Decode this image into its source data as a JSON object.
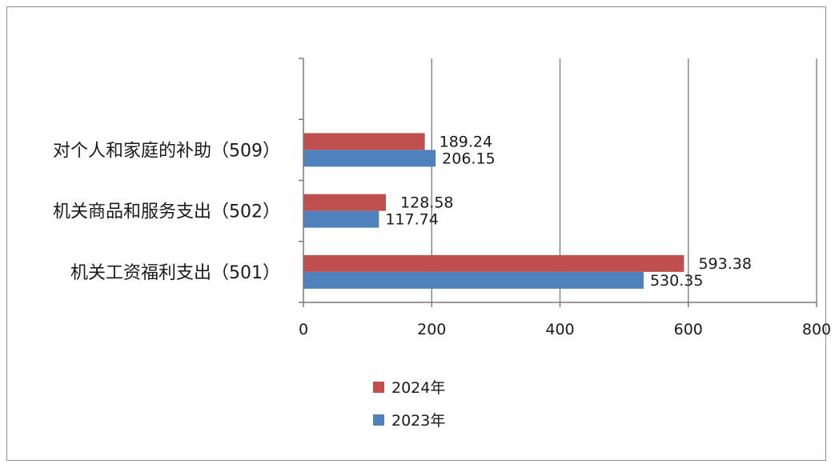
{
  "chart_data": {
    "type": "bar",
    "orientation": "horizontal",
    "categories": [
      "对个人和家庭的补助（509）",
      "机关商品和服务支出（502）",
      "机关工资福利支出（501）"
    ],
    "series": [
      {
        "name": "2024年",
        "color": "#c0504d",
        "values": [
          189.24,
          128.58,
          593.38
        ]
      },
      {
        "name": "2023年",
        "color": "#4f81bd",
        "values": [
          206.15,
          117.74,
          530.35
        ]
      }
    ],
    "value_labels": [
      [
        "189.24",
        "128.58",
        "593.38"
      ],
      [
        "206.15",
        "117.74",
        "530.35"
      ]
    ],
    "xlim": [
      0,
      800
    ],
    "xticks": [
      "0",
      "200",
      "400",
      "600",
      "800"
    ],
    "grid": true,
    "legend_position": "bottom"
  }
}
